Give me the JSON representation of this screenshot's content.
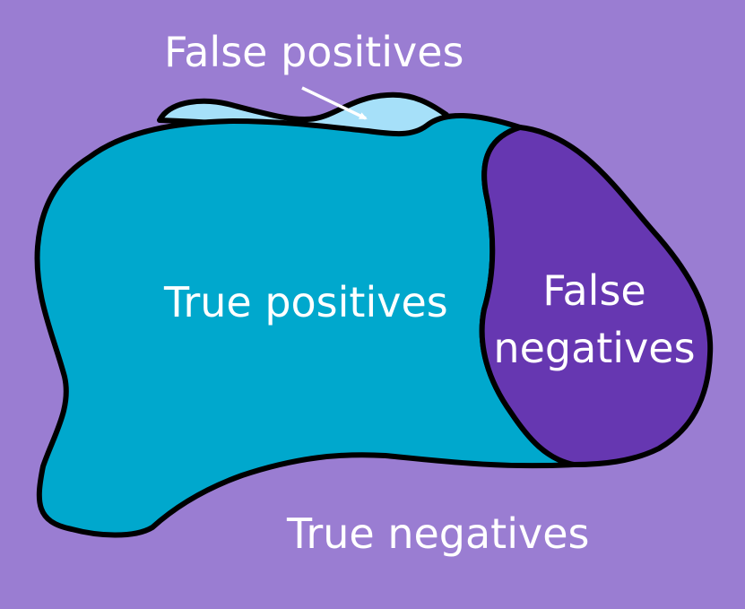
{
  "colors": {
    "background": "#9a7dd2",
    "true_positives_fill": "#00a8cd",
    "false_positives_fill": "#a6e0f9",
    "false_negatives_fill": "#6637b1",
    "outline": "#000000",
    "text": "#ffffff"
  },
  "labels": {
    "false_positives": "False positives",
    "true_positives": "True positives",
    "false_negatives_line1": "False",
    "false_negatives_line2": "negatives",
    "true_negatives": "True negatives"
  }
}
